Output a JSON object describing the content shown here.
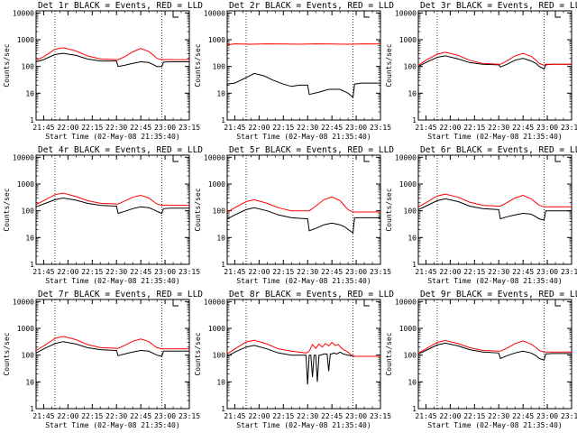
{
  "xaxis": {
    "label": "Start Time (02-May-08 21:35:40)",
    "ticks": [
      "21:45",
      "22:00",
      "22:15",
      "22:30",
      "22:45",
      "23:00",
      "23:15"
    ],
    "tick_minutes": [
      0,
      15,
      30,
      45,
      60,
      75,
      90
    ],
    "xlim": [
      -4.7,
      90
    ],
    "dotted_lines": [
      7,
      73
    ],
    "flag_label": "L"
  },
  "yaxis": {
    "label": "Counts/sec",
    "scale": "log",
    "ylim": [
      1,
      12000
    ],
    "ticks": [
      1,
      10,
      100,
      1000,
      10000
    ],
    "tick_labels": [
      "1",
      "10",
      "100",
      "1000",
      "10000"
    ]
  },
  "colors": {
    "events": "#000000",
    "lld": "#ff0000"
  },
  "chart_data": [
    {
      "type": "line",
      "title": "Det 1r BLACK = Events, RED = LLD",
      "series": [
        {
          "name": "Events",
          "x": [
            -4.7,
            0,
            7,
            12,
            20,
            27,
            35,
            45,
            46,
            50,
            55,
            60,
            65,
            68,
            70,
            73,
            74,
            78,
            90
          ],
          "values": [
            150,
            180,
            280,
            310,
            260,
            190,
            160,
            160,
            100,
            110,
            130,
            150,
            140,
            115,
            100,
            100,
            145,
            150,
            150
          ]
        },
        {
          "name": "LLD",
          "x": [
            -4.7,
            0,
            7,
            12,
            20,
            27,
            35,
            45,
            46,
            50,
            55,
            60,
            65,
            68,
            70,
            73,
            74,
            78,
            90
          ],
          "values": [
            170,
            230,
            440,
            500,
            380,
            250,
            190,
            180,
            180,
            230,
            350,
            470,
            360,
            260,
            200,
            180,
            180,
            180,
            180
          ]
        }
      ]
    },
    {
      "type": "line",
      "title": "Det 2r BLACK = Events, RED = LLD",
      "series": [
        {
          "name": "Events",
          "x": [
            -4.7,
            0,
            7,
            12,
            18,
            24,
            30,
            35,
            40,
            45,
            46,
            52,
            58,
            65,
            70,
            72,
            73,
            74,
            78,
            90
          ],
          "values": [
            22,
            24,
            38,
            55,
            45,
            30,
            22,
            18,
            20,
            20,
            9,
            11,
            14,
            14,
            10,
            8,
            7,
            22,
            24,
            24
          ]
        },
        {
          "name": "LLD",
          "x": [
            -4.7,
            0,
            10,
            20,
            30,
            40,
            50,
            60,
            70,
            80,
            90
          ],
          "values": [
            640,
            700,
            680,
            700,
            690,
            680,
            700,
            690,
            680,
            700,
            690
          ]
        }
      ]
    },
    {
      "type": "line",
      "title": "Det 3r BLACK = Events, RED = LLD",
      "series": [
        {
          "name": "Events",
          "x": [
            -4.7,
            0,
            7,
            12,
            20,
            27,
            35,
            45,
            46,
            50,
            55,
            60,
            65,
            68,
            70,
            73,
            74,
            78,
            90
          ],
          "values": [
            100,
            140,
            220,
            250,
            190,
            140,
            120,
            115,
            95,
            120,
            170,
            200,
            160,
            130,
            100,
            80,
            115,
            120,
            120
          ]
        },
        {
          "name": "LLD",
          "x": [
            -4.7,
            0,
            7,
            12,
            20,
            27,
            35,
            45,
            46,
            50,
            55,
            60,
            65,
            68,
            70,
            73,
            74,
            78,
            90
          ],
          "values": [
            110,
            170,
            290,
            340,
            260,
            170,
            130,
            120,
            120,
            160,
            250,
            310,
            240,
            170,
            130,
            110,
            120,
            120,
            120
          ]
        }
      ]
    },
    {
      "type": "line",
      "title": "Det 4r BLACK = Events, RED = LLD",
      "series": [
        {
          "name": "Events",
          "x": [
            -4.7,
            0,
            7,
            12,
            20,
            27,
            35,
            45,
            46,
            50,
            55,
            60,
            65,
            68,
            70,
            73,
            74,
            78,
            90
          ],
          "values": [
            140,
            180,
            260,
            300,
            250,
            190,
            160,
            150,
            80,
            95,
            120,
            140,
            130,
            110,
            95,
            80,
            120,
            125,
            125
          ]
        },
        {
          "name": "LLD",
          "x": [
            -4.7,
            0,
            7,
            12,
            20,
            27,
            35,
            45,
            46,
            50,
            55,
            60,
            65,
            68,
            70,
            73,
            74,
            78,
            90
          ],
          "values": [
            170,
            240,
            400,
            460,
            340,
            240,
            190,
            180,
            180,
            230,
            320,
            380,
            300,
            220,
            180,
            160,
            160,
            160,
            160
          ]
        }
      ]
    },
    {
      "type": "line",
      "title": "Det 5r BLACK = Events, RED = LLD",
      "series": [
        {
          "name": "Events",
          "x": [
            -4.7,
            0,
            7,
            12,
            20,
            27,
            35,
            45,
            46,
            50,
            55,
            60,
            65,
            68,
            70,
            73,
            74,
            78,
            90
          ],
          "values": [
            50,
            70,
            110,
            130,
            100,
            70,
            55,
            50,
            18,
            22,
            30,
            35,
            30,
            25,
            20,
            15,
            55,
            55,
            55
          ]
        },
        {
          "name": "LLD",
          "x": [
            -4.7,
            0,
            7,
            12,
            20,
            27,
            35,
            45,
            46,
            50,
            55,
            60,
            65,
            68,
            70,
            73,
            74,
            78,
            90
          ],
          "values": [
            90,
            130,
            220,
            260,
            190,
            130,
            100,
            100,
            100,
            150,
            260,
            330,
            240,
            150,
            110,
            90,
            90,
            90,
            90
          ]
        }
      ]
    },
    {
      "type": "line",
      "title": "Det 6r BLACK = Events, RED = LLD",
      "series": [
        {
          "name": "Events",
          "x": [
            -4.7,
            0,
            7,
            12,
            20,
            27,
            35,
            45,
            46,
            50,
            55,
            60,
            65,
            68,
            70,
            73,
            74,
            78,
            90
          ],
          "values": [
            110,
            150,
            240,
            280,
            220,
            150,
            120,
            110,
            50,
            60,
            70,
            80,
            75,
            60,
            50,
            45,
            100,
            100,
            100
          ]
        },
        {
          "name": "LLD",
          "x": [
            -4.7,
            0,
            7,
            12,
            20,
            27,
            35,
            45,
            46,
            50,
            55,
            60,
            65,
            68,
            70,
            73,
            74,
            78,
            90
          ],
          "values": [
            140,
            200,
            360,
            420,
            320,
            210,
            160,
            150,
            150,
            200,
            300,
            380,
            280,
            200,
            160,
            140,
            140,
            140,
            140
          ]
        }
      ]
    },
    {
      "type": "line",
      "title": "Det 7r BLACK = Events, RED = LLD",
      "series": [
        {
          "name": "Events",
          "x": [
            -4.7,
            0,
            7,
            12,
            20,
            27,
            35,
            45,
            46,
            50,
            55,
            60,
            65,
            68,
            70,
            73,
            74,
            78,
            90
          ],
          "values": [
            120,
            170,
            270,
            320,
            260,
            190,
            160,
            150,
            95,
            110,
            130,
            150,
            140,
            115,
            100,
            90,
            140,
            140,
            140
          ]
        },
        {
          "name": "LLD",
          "x": [
            -4.7,
            0,
            7,
            12,
            20,
            27,
            35,
            45,
            46,
            50,
            55,
            60,
            65,
            68,
            70,
            73,
            74,
            78,
            90
          ],
          "values": [
            150,
            220,
            420,
            500,
            380,
            250,
            190,
            180,
            180,
            230,
            330,
            400,
            320,
            230,
            190,
            170,
            170,
            170,
            170
          ]
        }
      ]
    },
    {
      "type": "line",
      "title": "Det 8r BLACK = Events, RED = LLD",
      "series": [
        {
          "name": "Events",
          "x": [
            -4.7,
            0,
            7,
            12,
            20,
            27,
            35,
            44,
            45,
            46,
            47,
            48,
            49,
            50,
            51,
            52,
            53,
            55,
            57,
            58,
            59,
            60,
            61,
            63,
            65,
            67,
            70,
            74,
            78,
            90
          ],
          "values": [
            90,
            130,
            200,
            230,
            170,
            120,
            100,
            100,
            8,
            100,
            100,
            15,
            100,
            100,
            10,
            100,
            100,
            110,
            110,
            25,
            110,
            110,
            120,
            110,
            130,
            110,
            100,
            90,
            90,
            90
          ]
        },
        {
          "name": "LLD",
          "x": [
            -4.7,
            0,
            7,
            12,
            20,
            27,
            35,
            44,
            45,
            46,
            48,
            50,
            52,
            54,
            56,
            58,
            60,
            62,
            64,
            66,
            68,
            70,
            72,
            74,
            78,
            90
          ],
          "values": [
            110,
            170,
            310,
            360,
            260,
            170,
            140,
            120,
            130,
            140,
            250,
            180,
            260,
            200,
            270,
            220,
            300,
            230,
            250,
            180,
            150,
            130,
            100,
            90,
            90,
            90
          ]
        }
      ]
    },
    {
      "type": "line",
      "title": "Det 9r BLACK = Events, RED = LLD",
      "series": [
        {
          "name": "Events",
          "x": [
            -4.7,
            0,
            7,
            12,
            20,
            27,
            35,
            45,
            46,
            50,
            55,
            60,
            65,
            68,
            70,
            73,
            74,
            78,
            90
          ],
          "values": [
            110,
            150,
            240,
            280,
            220,
            160,
            130,
            120,
            75,
            95,
            120,
            140,
            120,
            95,
            75,
            65,
            110,
            115,
            115
          ]
        },
        {
          "name": "LLD",
          "x": [
            -4.7,
            0,
            7,
            12,
            20,
            27,
            35,
            45,
            46,
            50,
            55,
            60,
            65,
            68,
            70,
            73,
            74,
            78,
            90
          ],
          "values": [
            120,
            170,
            300,
            350,
            270,
            190,
            150,
            140,
            140,
            180,
            270,
            340,
            260,
            190,
            150,
            130,
            130,
            130,
            130
          ]
        }
      ]
    }
  ]
}
